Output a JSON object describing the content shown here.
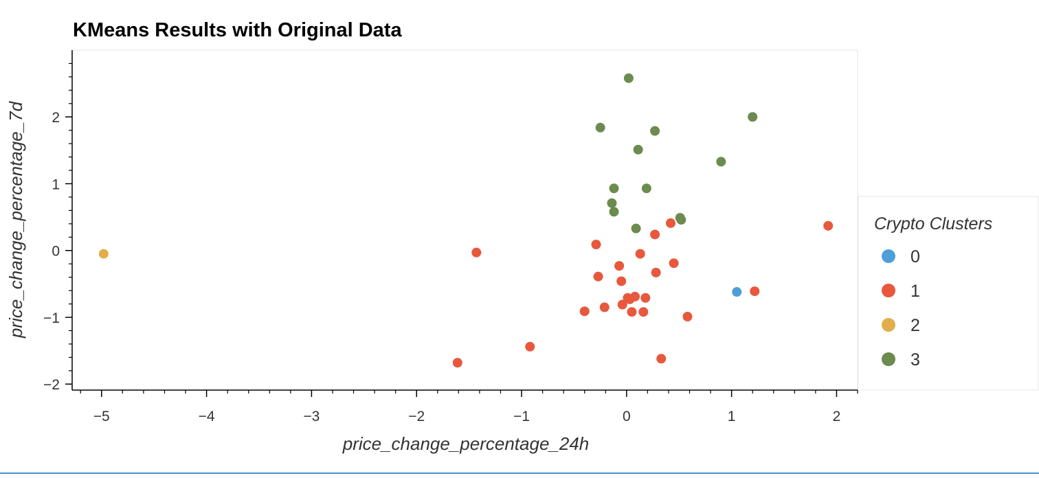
{
  "chart_data": {
    "type": "scatter",
    "title": "KMeans Results with Original Data",
    "xlabel": "price_change_percentage_24h",
    "ylabel": "price_change_percentage_7d",
    "xlim": [
      -5.28,
      2.2
    ],
    "ylim": [
      -2.09,
      3.0
    ],
    "x_ticks": [
      "−5",
      "−4",
      "−3",
      "−2",
      "−1",
      "0",
      "1",
      "2"
    ],
    "x_tick_values": [
      -5,
      -4,
      -3,
      -2,
      -1,
      0,
      1,
      2
    ],
    "y_ticks": [
      "−2",
      "−1",
      "0",
      "1",
      "2"
    ],
    "y_tick_values": [
      -2,
      -1,
      0,
      1,
      2
    ],
    "grid": false,
    "legend": {
      "title": "Crypto Clusters",
      "placement": "right",
      "entries": [
        "0",
        "1",
        "2",
        "3"
      ]
    },
    "series": [
      {
        "name": "0",
        "color": "#4e9fd9",
        "points": [
          [
            1.05,
            -0.62
          ]
        ]
      },
      {
        "name": "1",
        "color": "#e8583d",
        "points": [
          [
            1.92,
            0.37
          ],
          [
            1.22,
            -0.61
          ],
          [
            0.58,
            -0.99
          ],
          [
            0.45,
            -0.19
          ],
          [
            0.42,
            0.41
          ],
          [
            0.33,
            -1.62
          ],
          [
            0.28,
            -0.33
          ],
          [
            0.27,
            0.24
          ],
          [
            0.18,
            -0.71
          ],
          [
            0.16,
            -0.92
          ],
          [
            0.13,
            -0.05
          ],
          [
            0.08,
            -0.69
          ],
          [
            0.05,
            -0.92
          ],
          [
            0.03,
            -0.73
          ],
          [
            0.01,
            -0.71
          ],
          [
            -0.04,
            -0.81
          ],
          [
            -0.05,
            -0.46
          ],
          [
            -0.07,
            -0.23
          ],
          [
            -0.21,
            -0.85
          ],
          [
            -0.27,
            -0.39
          ],
          [
            -0.29,
            0.09
          ],
          [
            -0.4,
            -0.91
          ],
          [
            -0.92,
            -1.44
          ],
          [
            -1.43,
            -0.03
          ],
          [
            -1.61,
            -1.68
          ]
        ]
      },
      {
        "name": "2",
        "color": "#e2ae4a",
        "points": [
          [
            -4.98,
            -0.05
          ]
        ]
      },
      {
        "name": "3",
        "color": "#6c8b4f",
        "points": [
          [
            0.02,
            2.58
          ],
          [
            1.2,
            2.0
          ],
          [
            -0.25,
            1.84
          ],
          [
            0.27,
            1.79
          ],
          [
            0.11,
            1.51
          ],
          [
            0.9,
            1.33
          ],
          [
            -0.12,
            0.93
          ],
          [
            0.19,
            0.93
          ],
          [
            -0.14,
            0.71
          ],
          [
            -0.12,
            0.58
          ],
          [
            0.51,
            0.49
          ],
          [
            0.52,
            0.46
          ],
          [
            0.09,
            0.33
          ]
        ]
      }
    ]
  }
}
